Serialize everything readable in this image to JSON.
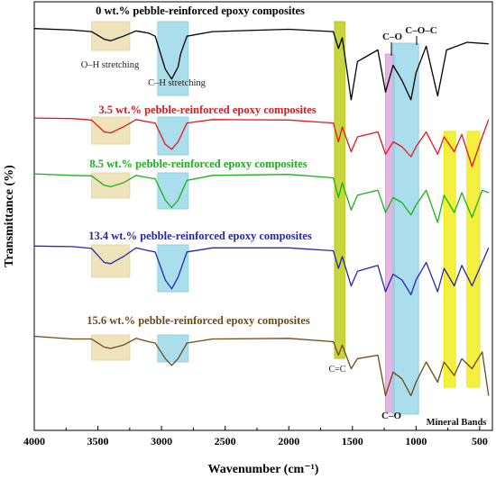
{
  "chart_data": {
    "type": "line",
    "title": "",
    "xlabel": "Wavenumber (cm⁻¹)",
    "ylabel": "Transmittance (%)",
    "xlim": [
      4000,
      400
    ],
    "x_reversed": true,
    "x_ticks": [
      4000,
      3500,
      3000,
      2500,
      2000,
      1500,
      1000,
      500
    ],
    "x_tick_labels": [
      "4000",
      "3500",
      "3000",
      "2500",
      "2000",
      "1500",
      "1000",
      "500"
    ],
    "grid": false,
    "legend": "none",
    "series": [
      {
        "name": "0 wt.% pebble-reinforced epoxy composites",
        "color": "#000000",
        "points": [
          [
            4000,
            0.02
          ],
          [
            3700,
            0.04
          ],
          [
            3550,
            0.06
          ],
          [
            3450,
            0.16
          ],
          [
            3400,
            0.18
          ],
          [
            3300,
            0.12
          ],
          [
            3200,
            0.05
          ],
          [
            3100,
            0.08
          ],
          [
            3050,
            0.12
          ],
          [
            2970,
            0.55
          ],
          [
            2920,
            0.68
          ],
          [
            2870,
            0.52
          ],
          [
            2850,
            0.35
          ],
          [
            2800,
            0.12
          ],
          [
            2600,
            0.06
          ],
          [
            2000,
            0.03
          ],
          [
            1650,
            0.06
          ],
          [
            1610,
            0.28
          ],
          [
            1580,
            0.14
          ],
          [
            1510,
            0.95
          ],
          [
            1460,
            0.45
          ],
          [
            1300,
            0.3
          ],
          [
            1240,
            0.85
          ],
          [
            1180,
            0.5
          ],
          [
            1110,
            0.7
          ],
          [
            1040,
            0.95
          ],
          [
            1000,
            0.6
          ],
          [
            920,
            0.25
          ],
          [
            830,
            0.9
          ],
          [
            760,
            0.3
          ],
          [
            600,
            0.2
          ],
          [
            430,
            0.22
          ]
        ]
      },
      {
        "name": "3.5 wt.% pebble-reinforced epoxy composites",
        "color": "#e8161e",
        "points": [
          [
            4000,
            0.02
          ],
          [
            3700,
            0.03
          ],
          [
            3550,
            0.06
          ],
          [
            3450,
            0.3
          ],
          [
            3400,
            0.32
          ],
          [
            3300,
            0.2
          ],
          [
            3200,
            0.05
          ],
          [
            3100,
            0.1
          ],
          [
            3050,
            0.12
          ],
          [
            2970,
            0.55
          ],
          [
            2920,
            0.65
          ],
          [
            2870,
            0.5
          ],
          [
            2800,
            0.12
          ],
          [
            2600,
            0.05
          ],
          [
            2000,
            0.06
          ],
          [
            1650,
            0.12
          ],
          [
            1610,
            0.5
          ],
          [
            1580,
            0.2
          ],
          [
            1510,
            0.7
          ],
          [
            1460,
            0.4
          ],
          [
            1300,
            0.3
          ],
          [
            1240,
            0.75
          ],
          [
            1180,
            0.5
          ],
          [
            1110,
            0.6
          ],
          [
            1040,
            0.8
          ],
          [
            1000,
            0.6
          ],
          [
            920,
            0.3
          ],
          [
            830,
            0.75
          ],
          [
            780,
            0.4
          ],
          [
            700,
            0.7
          ],
          [
            640,
            0.35
          ],
          [
            560,
            1.0
          ],
          [
            480,
            0.4
          ],
          [
            430,
            0.05
          ]
        ]
      },
      {
        "name": "8.5 wt.% pebble-reinforced epoxy composites",
        "color": "#18b418",
        "points": [
          [
            4000,
            0.02
          ],
          [
            3700,
            0.05
          ],
          [
            3550,
            0.06
          ],
          [
            3450,
            0.25
          ],
          [
            3400,
            0.28
          ],
          [
            3300,
            0.2
          ],
          [
            3200,
            0.05
          ],
          [
            3100,
            0.1
          ],
          [
            3050,
            0.12
          ],
          [
            2970,
            0.55
          ],
          [
            2920,
            0.7
          ],
          [
            2870,
            0.55
          ],
          [
            2800,
            0.15
          ],
          [
            2600,
            0.05
          ],
          [
            2000,
            0.03
          ],
          [
            1650,
            0.1
          ],
          [
            1610,
            0.5
          ],
          [
            1580,
            0.2
          ],
          [
            1510,
            0.75
          ],
          [
            1460,
            0.45
          ],
          [
            1300,
            0.35
          ],
          [
            1240,
            0.8
          ],
          [
            1180,
            0.5
          ],
          [
            1110,
            0.6
          ],
          [
            1040,
            0.85
          ],
          [
            1000,
            0.65
          ],
          [
            920,
            0.35
          ],
          [
            830,
            1.0
          ],
          [
            780,
            0.45
          ],
          [
            700,
            0.8
          ],
          [
            640,
            0.4
          ],
          [
            560,
            0.9
          ],
          [
            480,
            0.35
          ],
          [
            430,
            0.4
          ]
        ]
      },
      {
        "name": "13.4 wt.% pebble-reinforced epoxy composites",
        "color": "#2626b4",
        "points": [
          [
            4000,
            0.02
          ],
          [
            3700,
            0.03
          ],
          [
            3550,
            0.06
          ],
          [
            3450,
            0.3
          ],
          [
            3400,
            0.32
          ],
          [
            3300,
            0.2
          ],
          [
            3200,
            0.05
          ],
          [
            3100,
            0.1
          ],
          [
            3050,
            0.12
          ],
          [
            2970,
            0.6
          ],
          [
            2920,
            0.75
          ],
          [
            2870,
            0.55
          ],
          [
            2800,
            0.12
          ],
          [
            2600,
            0.05
          ],
          [
            2000,
            0.05
          ],
          [
            1650,
            0.1
          ],
          [
            1610,
            0.4
          ],
          [
            1580,
            0.2
          ],
          [
            1510,
            0.7
          ],
          [
            1460,
            0.45
          ],
          [
            1300,
            0.35
          ],
          [
            1240,
            0.8
          ],
          [
            1180,
            0.5
          ],
          [
            1110,
            0.6
          ],
          [
            1040,
            0.85
          ],
          [
            1000,
            0.6
          ],
          [
            920,
            0.3
          ],
          [
            830,
            0.8
          ],
          [
            780,
            0.4
          ],
          [
            700,
            0.7
          ],
          [
            640,
            0.35
          ],
          [
            560,
            0.7
          ],
          [
            480,
            0.3
          ],
          [
            430,
            0.05
          ]
        ]
      },
      {
        "name": "15.6 wt.% pebble-reinforced epoxy composites",
        "color": "#6e4a18",
        "points": [
          [
            4000,
            0.02
          ],
          [
            3700,
            0.06
          ],
          [
            3550,
            0.06
          ],
          [
            3450,
            0.18
          ],
          [
            3400,
            0.2
          ],
          [
            3300,
            0.15
          ],
          [
            3200,
            0.05
          ],
          [
            3100,
            0.1
          ],
          [
            3050,
            0.12
          ],
          [
            2970,
            0.35
          ],
          [
            2920,
            0.45
          ],
          [
            2870,
            0.35
          ],
          [
            2800,
            0.12
          ],
          [
            2600,
            0.06
          ],
          [
            2000,
            0.05
          ],
          [
            1650,
            0.1
          ],
          [
            1610,
            0.3
          ],
          [
            1580,
            0.15
          ],
          [
            1510,
            0.5
          ],
          [
            1460,
            0.35
          ],
          [
            1300,
            0.3
          ],
          [
            1240,
            0.9
          ],
          [
            1180,
            0.55
          ],
          [
            1110,
            0.65
          ],
          [
            1040,
            0.9
          ],
          [
            1000,
            0.7
          ],
          [
            920,
            0.4
          ],
          [
            830,
            0.7
          ],
          [
            780,
            0.4
          ],
          [
            700,
            0.6
          ],
          [
            640,
            0.35
          ],
          [
            560,
            0.5
          ],
          [
            480,
            0.25
          ],
          [
            430,
            0.9
          ]
        ]
      }
    ],
    "annotations": [
      {
        "text": "O–H stretching",
        "x": 3400
      },
      {
        "text": "C–H stretching",
        "x": 2900
      },
      {
        "text": "C=C",
        "x": 1610
      },
      {
        "text": "C–O",
        "x": 1220
      },
      {
        "text": "C–O–C",
        "x": 1000
      },
      {
        "text": "C–O",
        "x": 1220
      },
      {
        "text": "Mineral Bands",
        "x": 600
      }
    ],
    "highlight_bands": [
      {
        "name": "O-H stretching",
        "x": [
          3550,
          3250
        ],
        "color": "#e9d9a6"
      },
      {
        "name": "C-H stretching",
        "x": [
          3030,
          2790
        ],
        "color": "#8fd3e6"
      },
      {
        "name": "C=C",
        "x": [
          1640,
          1560
        ],
        "color": "#b4c800"
      },
      {
        "name": "C-O",
        "x": [
          1240,
          1170
        ],
        "color": "#e19ad8"
      },
      {
        "name": "C-O-C",
        "x": [
          1185,
          980
        ],
        "color": "#8fd3e6"
      },
      {
        "name": "Mineral band 1",
        "x": [
          780,
          690
        ],
        "color": "#f2ea00"
      },
      {
        "name": "Mineral band 2",
        "x": [
          600,
          500
        ],
        "color": "#f2ea00"
      }
    ]
  }
}
